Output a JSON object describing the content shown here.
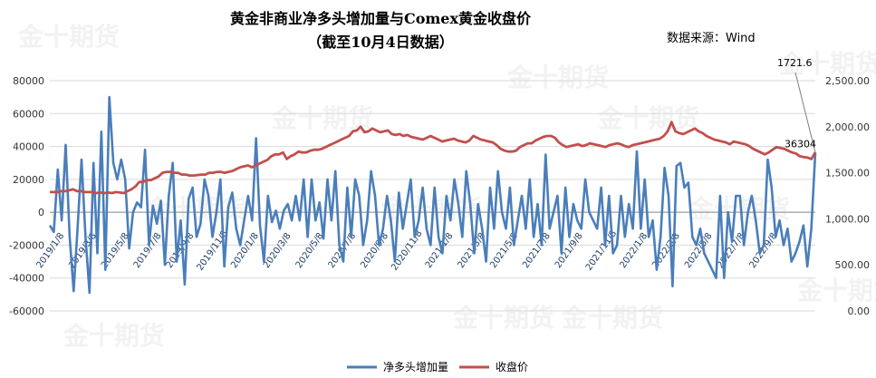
{
  "chart_data": {
    "type": "line",
    "title": "黄金非商业净多头增加量与Comex黄金收盘价",
    "subtitle": "（截至10月4日数据）",
    "source": "数据来源：Wind",
    "watermark": "金十期货",
    "x_ticks": [
      "2019/1/8",
      "2019/3/8",
      "2019/5/8",
      "2019/7/8",
      "2019/9/8",
      "2019/11/8",
      "2020/1/8",
      "2020/3/8",
      "2020/5/8",
      "2020/7/8",
      "2020/9/8",
      "2020/11/8",
      "2021/1/8",
      "2021/3/8",
      "2021/5/8",
      "2021/7/8",
      "2021/9/8",
      "2021/11/8",
      "2022/1/8",
      "2022/3/8",
      "2022/5/8",
      "2022/7/8",
      "2022/9/8"
    ],
    "y_left": {
      "min": -60000,
      "max": 80000,
      "step": 20000,
      "tick_labels": [
        "-60000",
        "-40000",
        "-20000",
        "0",
        "20000",
        "40000",
        "60000",
        "80000"
      ]
    },
    "y_right": {
      "min": 0,
      "max": 2500,
      "step": 500,
      "tick_labels": [
        "0.00",
        "500.00",
        "1,000.00",
        "1,500.00",
        "2,000.00",
        "2,500.00"
      ]
    },
    "annotations": [
      {
        "text": "1721.6",
        "series": "收盘价",
        "value": 1721.6
      },
      {
        "text": "36304",
        "series": "净多头增加量",
        "value": 36304
      }
    ],
    "colors": {
      "net_long": "#4a7ebb",
      "close": "#c0504d"
    },
    "series": [
      {
        "name": "净多头增加量",
        "axis": "left",
        "values": [
          -8000,
          -12000,
          26000,
          -5000,
          41000,
          -15000,
          -48000,
          -10000,
          32000,
          -15000,
          -49000,
          30000,
          -25000,
          49000,
          -35000,
          70000,
          30000,
          20000,
          32000,
          20000,
          -22000,
          0,
          6000,
          3000,
          38000,
          -20000,
          4000,
          -7000,
          7000,
          -32000,
          10000,
          30000,
          -30000,
          -5000,
          -44000,
          8000,
          15000,
          -15000,
          -7000,
          20000,
          10000,
          -15000,
          0,
          20000,
          -33000,
          3000,
          12000,
          -10000,
          -20000,
          -5000,
          10000,
          -5000,
          45000,
          -8000,
          -30000,
          10000,
          -6000,
          1000,
          -10000,
          1000,
          5000,
          -5000,
          10000,
          -5000,
          20000,
          -15000,
          20000,
          -5000,
          6000,
          -16000,
          20000,
          -5000,
          25000,
          -20000,
          -30000,
          15000,
          -15000,
          20000,
          10000,
          -20000,
          -5000,
          25000,
          10000,
          -20000,
          -10000,
          10000,
          -5000,
          -30000,
          12000,
          -10000,
          5000,
          20000,
          -15000,
          -5000,
          15000,
          -10000,
          -20000,
          15000,
          -15000,
          -25000,
          10000,
          -5000,
          20000,
          5000,
          -15000,
          25000,
          5000,
          -25000,
          5000,
          -10000,
          -30000,
          15000,
          -10000,
          25000,
          0,
          -10000,
          15000,
          -20000,
          -5000,
          10000,
          -10000,
          20000,
          -15000,
          5000,
          -20000,
          35000,
          -10000,
          0,
          10000,
          -25000,
          15000,
          -15000,
          5000,
          -5000,
          -10000,
          20000,
          0,
          -5000,
          -10000,
          15000,
          -20000,
          10000,
          -25000,
          -20000,
          10000,
          -15000,
          5000,
          -10000,
          37000,
          -10000,
          20000,
          -15000,
          -5000,
          -35000,
          -15000,
          27000,
          10000,
          -45000,
          28000,
          30000,
          15000,
          18000,
          -15000,
          -20000,
          -10000,
          -25000,
          -30000,
          -35000,
          -40000,
          10000,
          -40000,
          0,
          -18000,
          10000,
          10000,
          -20000,
          0,
          10000,
          -5000,
          -25000,
          -20000,
          32000,
          15000,
          -15000,
          -5000,
          -20000,
          -10000,
          -30000,
          -25000,
          -18000,
          -8000,
          -33000,
          -10000,
          36304
        ]
      },
      {
        "name": "收盘价",
        "axis": "right",
        "values": [
          1290,
          1290,
          1290,
          1300,
          1300,
          1310,
          1320,
          1300,
          1300,
          1290,
          1290,
          1290,
          1280,
          1285,
          1280,
          1285,
          1280,
          1290,
          1285,
          1280,
          1300,
          1320,
          1350,
          1400,
          1400,
          1420,
          1420,
          1440,
          1460,
          1500,
          1510,
          1510,
          1500,
          1500,
          1480,
          1480,
          1470,
          1470,
          1475,
          1480,
          1480,
          1500,
          1500,
          1510,
          1510,
          1500,
          1510,
          1520,
          1540,
          1560,
          1570,
          1580,
          1560,
          1580,
          1600,
          1620,
          1640,
          1680,
          1700,
          1700,
          1720,
          1650,
          1680,
          1700,
          1730,
          1720,
          1720,
          1740,
          1750,
          1750,
          1760,
          1780,
          1800,
          1820,
          1840,
          1860,
          1880,
          1900,
          1950,
          1960,
          2000,
          1940,
          1950,
          1980,
          1960,
          1940,
          1950,
          1960,
          1920,
          1910,
          1920,
          1900,
          1910,
          1890,
          1880,
          1870,
          1860,
          1880,
          1900,
          1880,
          1860,
          1840,
          1850,
          1860,
          1870,
          1850,
          1840,
          1830,
          1850,
          1900,
          1880,
          1860,
          1850,
          1840,
          1830,
          1800,
          1760,
          1740,
          1730,
          1730,
          1740,
          1780,
          1800,
          1820,
          1820,
          1850,
          1870,
          1890,
          1900,
          1900,
          1880,
          1830,
          1800,
          1780,
          1790,
          1800,
          1810,
          1790,
          1800,
          1820,
          1810,
          1800,
          1790,
          1780,
          1800,
          1810,
          1820,
          1810,
          1790,
          1780,
          1800,
          1810,
          1820,
          1830,
          1840,
          1850,
          1860,
          1870,
          1900,
          1950,
          2050,
          1950,
          1930,
          1920,
          1940,
          1960,
          1980,
          1950,
          1930,
          1900,
          1880,
          1860,
          1850,
          1840,
          1830,
          1810,
          1840,
          1830,
          1820,
          1810,
          1790,
          1760,
          1740,
          1720,
          1700,
          1720,
          1750,
          1780,
          1770,
          1760,
          1740,
          1720,
          1710,
          1680,
          1670,
          1665,
          1650,
          1721.6
        ]
      }
    ],
    "grid": "horizontal",
    "legend_position": "bottom"
  }
}
